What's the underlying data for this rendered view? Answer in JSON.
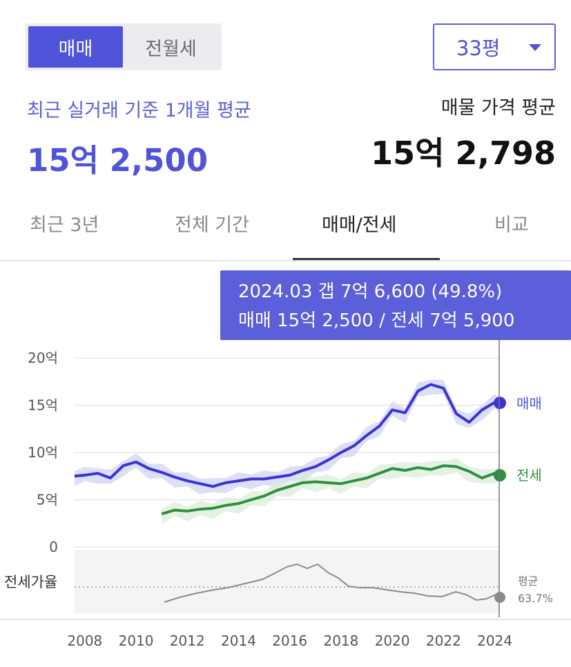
{
  "trade_toggle": {
    "sale_label": "매매",
    "rent_label": "전월세"
  },
  "size_select": {
    "value": "33평"
  },
  "recent": {
    "label": "최근 실거래 기준 1개월 평균",
    "value": "15억 2,500"
  },
  "listing": {
    "label": "매물 가격 평균",
    "value": "15억 2,798"
  },
  "tabs": [
    {
      "label": "최근 3년",
      "active": false
    },
    {
      "label": "전체 기간",
      "active": false
    },
    {
      "label": "매매/전세",
      "active": true
    },
    {
      "label": "비교",
      "active": false
    }
  ],
  "tooltip": {
    "line1": "2024.03  갭 7억 6,600 (49.8%)",
    "line2": "매매 15억 2,500 / 전세 7억 5,900"
  },
  "colors": {
    "accent": "#4f54d8",
    "sale": "#3a34d6",
    "jeonse": "#2f8f3f",
    "ratio": "#8a8a8a"
  },
  "chart_data": {
    "type": "line",
    "x_ticks": [
      "2008",
      "2010",
      "2012",
      "2014",
      "2016",
      "2018",
      "2020",
      "2022",
      "2024"
    ],
    "y_ticks": [
      "20억",
      "15억",
      "10억",
      "5억",
      "0"
    ],
    "xlim": [
      2007.6,
      2024.2
    ],
    "ylim": [
      0,
      20
    ],
    "series": [
      {
        "name": "매매",
        "color": "#3a34d6",
        "x": [
          2007.6,
          2008.0,
          2008.5,
          2009.0,
          2009.5,
          2010.0,
          2010.5,
          2011.0,
          2011.5,
          2012.0,
          2012.5,
          2013.0,
          2013.5,
          2014.0,
          2014.5,
          2015.0,
          2015.5,
          2016.0,
          2016.5,
          2017.0,
          2017.5,
          2018.0,
          2018.5,
          2019.0,
          2019.5,
          2020.0,
          2020.5,
          2021.0,
          2021.5,
          2022.0,
          2022.5,
          2023.0,
          2023.5,
          2024.0,
          2024.2
        ],
        "y": [
          7.5,
          7.6,
          7.8,
          7.3,
          8.6,
          9.0,
          8.3,
          7.9,
          7.4,
          7.0,
          6.7,
          6.4,
          6.8,
          7.0,
          7.2,
          7.2,
          7.4,
          7.6,
          8.1,
          8.5,
          9.2,
          10.0,
          10.7,
          11.8,
          12.8,
          14.5,
          14.2,
          16.5,
          17.2,
          16.8,
          14.1,
          13.2,
          14.5,
          15.3,
          15.25
        ]
      },
      {
        "name": "전세",
        "color": "#2f8f3f",
        "x": [
          2011.0,
          2011.5,
          2012.0,
          2012.5,
          2013.0,
          2013.5,
          2014.0,
          2014.5,
          2015.0,
          2015.5,
          2016.0,
          2016.5,
          2017.0,
          2017.5,
          2018.0,
          2018.5,
          2019.0,
          2019.5,
          2020.0,
          2020.5,
          2021.0,
          2021.5,
          2022.0,
          2022.5,
          2023.0,
          2023.5,
          2024.0,
          2024.2
        ],
        "y": [
          3.5,
          3.9,
          3.8,
          4.0,
          4.1,
          4.4,
          4.6,
          5.0,
          5.4,
          6.0,
          6.4,
          6.8,
          6.9,
          6.8,
          6.7,
          7.0,
          7.3,
          7.8,
          8.3,
          8.1,
          8.4,
          8.2,
          8.6,
          8.5,
          8.0,
          7.3,
          7.8,
          7.59
        ]
      }
    ],
    "series_labels": {
      "sale": "매매",
      "jeonse": "전세"
    },
    "ratio_panel": {
      "label": "전세가율",
      "avg_label": "평균",
      "avg_value": "63.7%"
    }
  }
}
